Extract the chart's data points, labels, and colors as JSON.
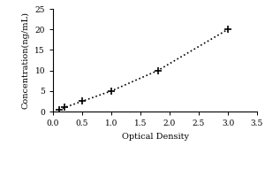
{
  "x_data": [
    0.1,
    0.2,
    0.5,
    1.0,
    1.8,
    3.0
  ],
  "y_data": [
    0.5,
    1.0,
    2.5,
    5.0,
    10.0,
    20.0
  ],
  "xlabel": "Optical Density",
  "ylabel": "Concentration(ng/mL)",
  "xlim": [
    0,
    3.5
  ],
  "ylim": [
    0,
    25
  ],
  "xticks": [
    0,
    0.5,
    1.0,
    1.5,
    2.0,
    2.5,
    3.0,
    3.5
  ],
  "yticks": [
    0,
    5,
    10,
    15,
    20,
    25
  ],
  "marker": "+",
  "marker_color": "black",
  "marker_size": 6,
  "marker_edge_width": 1.2,
  "line_style": "dotted",
  "line_color": "black",
  "line_width": 1.2,
  "bg_color": "white",
  "label_fontsize": 7,
  "tick_fontsize": 6.5,
  "font_family": "serif"
}
